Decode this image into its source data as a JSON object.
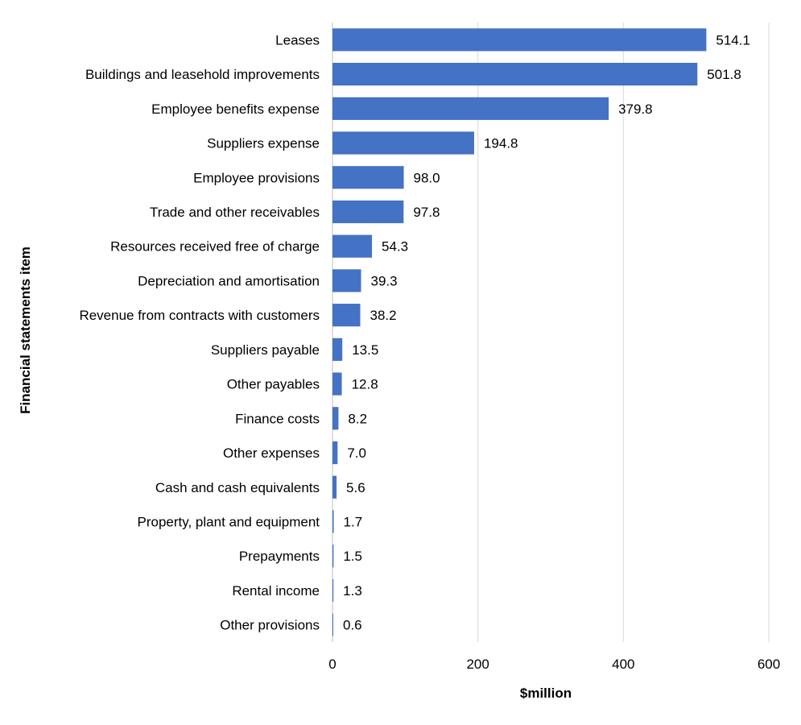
{
  "chart_data": {
    "type": "bar",
    "orientation": "horizontal",
    "categories": [
      "Leases",
      "Buildings and leasehold improvements",
      "Employee benefits expense",
      "Suppliers expense",
      "Employee provisions",
      "Trade and other receivables",
      "Resources received free of charge",
      "Depreciation and amortisation",
      "Revenue from contracts with customers",
      "Suppliers payable",
      "Other payables",
      "Finance costs",
      "Other expenses",
      "Cash and cash equivalents",
      "Property, plant and equipment",
      "Prepayments",
      "Rental income",
      "Other provisions"
    ],
    "values": [
      514.1,
      501.8,
      379.8,
      194.8,
      98.0,
      97.8,
      54.3,
      39.3,
      38.2,
      13.5,
      12.8,
      8.2,
      7.0,
      5.6,
      1.7,
      1.5,
      1.3,
      0.6
    ],
    "value_labels": [
      "514.1",
      "501.8",
      "379.8",
      "194.8",
      "98.0",
      "97.8",
      "54.3",
      "39.3",
      "38.2",
      "13.5",
      "12.8",
      "8.2",
      "7.0",
      "5.6",
      "1.7",
      "1.5",
      "1.3",
      "0.6"
    ],
    "title": "",
    "xlabel": "$million",
    "ylabel": "Financial statements item",
    "xlim": [
      0,
      600
    ],
    "xticks": [
      0,
      200,
      400,
      600
    ],
    "xtick_labels": [
      "0",
      "200",
      "400",
      "600"
    ],
    "grid": "vertical",
    "legend": "none",
    "bar_color": "#4472c4"
  }
}
